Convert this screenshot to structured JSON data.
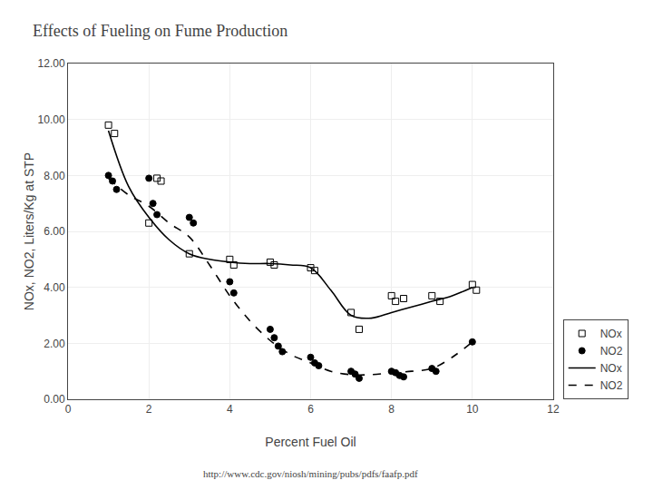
{
  "chart_data": {
    "type": "scatter",
    "title": "Effects of Fueling on Fume Production",
    "x_label": "Percent Fuel Oil",
    "y_label": "NOx, NO2, Liters/Kg at STP",
    "annotations": [
      {
        "text": "http://www.cdc.gov/niosh/mining/pubs/pdfs/faafp.pdf"
      }
    ],
    "xlim": [
      0,
      12
    ],
    "xticks": [
      0,
      2,
      4,
      6,
      8,
      10,
      12
    ],
    "ylim": [
      0,
      12
    ],
    "yticks": [
      {
        "value": 0,
        "label": "0.00"
      },
      {
        "value": 2,
        "label": "2.00"
      },
      {
        "value": 4,
        "label": "4.00"
      },
      {
        "value": 6,
        "label": "6.00"
      },
      {
        "value": 8,
        "label": "8.00"
      },
      {
        "value": 10,
        "label": "10.00"
      },
      {
        "value": 12,
        "label": "12.00"
      }
    ],
    "grid": true,
    "legend": "lower right",
    "series": [
      {
        "name": "NOx",
        "type": "scatter",
        "marker": "square-open",
        "color": "#000000",
        "x": [
          1.0,
          1.15,
          2.0,
          2.2,
          2.3,
          3.0,
          4.0,
          4.1,
          5.0,
          5.1,
          6.0,
          6.1,
          7.0,
          7.2,
          8.0,
          8.1,
          8.3,
          9.0,
          9.2,
          10.0,
          10.1
        ],
        "values": [
          9.8,
          9.5,
          6.3,
          7.9,
          7.8,
          5.2,
          5.0,
          4.8,
          4.9,
          4.8,
          4.7,
          4.6,
          3.1,
          2.5,
          3.7,
          3.5,
          3.6,
          3.7,
          3.5,
          4.1,
          3.9
        ]
      },
      {
        "name": "NO2",
        "type": "scatter",
        "marker": "circle",
        "color": "#000000",
        "x": [
          1.0,
          1.1,
          1.2,
          2.0,
          2.1,
          2.2,
          3.0,
          3.1,
          4.0,
          4.1,
          5.0,
          5.1,
          5.2,
          5.3,
          6.0,
          6.1,
          6.2,
          7.0,
          7.1,
          7.2,
          8.0,
          8.1,
          8.2,
          8.3,
          9.0,
          9.1,
          10.0
        ],
        "values": [
          8.0,
          7.8,
          7.5,
          7.9,
          7.0,
          6.6,
          6.5,
          6.3,
          4.2,
          3.8,
          2.5,
          2.2,
          1.9,
          1.7,
          1.5,
          1.3,
          1.2,
          1.0,
          0.9,
          0.75,
          1.0,
          0.95,
          0.85,
          0.8,
          1.1,
          1.0,
          2.05
        ]
      },
      {
        "name": "NOx",
        "type": "line",
        "line_style": "solid",
        "color": "#000000",
        "x": [
          1.0,
          1.5,
          2.0,
          2.5,
          3.0,
          3.5,
          4.0,
          4.5,
          5.0,
          5.5,
          6.0,
          6.5,
          7.0,
          7.5,
          8.0,
          8.5,
          9.0,
          9.5,
          10.0
        ],
        "values": [
          9.6,
          7.6,
          6.5,
          5.7,
          5.2,
          5.0,
          4.9,
          4.85,
          4.85,
          4.8,
          4.7,
          3.9,
          3.0,
          2.9,
          3.1,
          3.3,
          3.5,
          3.7,
          4.0
        ]
      },
      {
        "name": "NO2",
        "type": "line",
        "line_style": "dashed",
        "color": "#000000",
        "x": [
          1.0,
          1.5,
          2.0,
          2.5,
          3.0,
          3.5,
          4.0,
          4.5,
          5.0,
          5.5,
          6.0,
          6.5,
          7.0,
          7.5,
          8.0,
          8.5,
          9.0,
          9.5,
          10.0
        ],
        "values": [
          7.9,
          7.3,
          6.9,
          6.3,
          5.8,
          4.8,
          3.7,
          2.8,
          2.1,
          1.6,
          1.3,
          1.0,
          0.88,
          0.88,
          0.95,
          1.0,
          1.1,
          1.5,
          2.05
        ]
      }
    ]
  }
}
